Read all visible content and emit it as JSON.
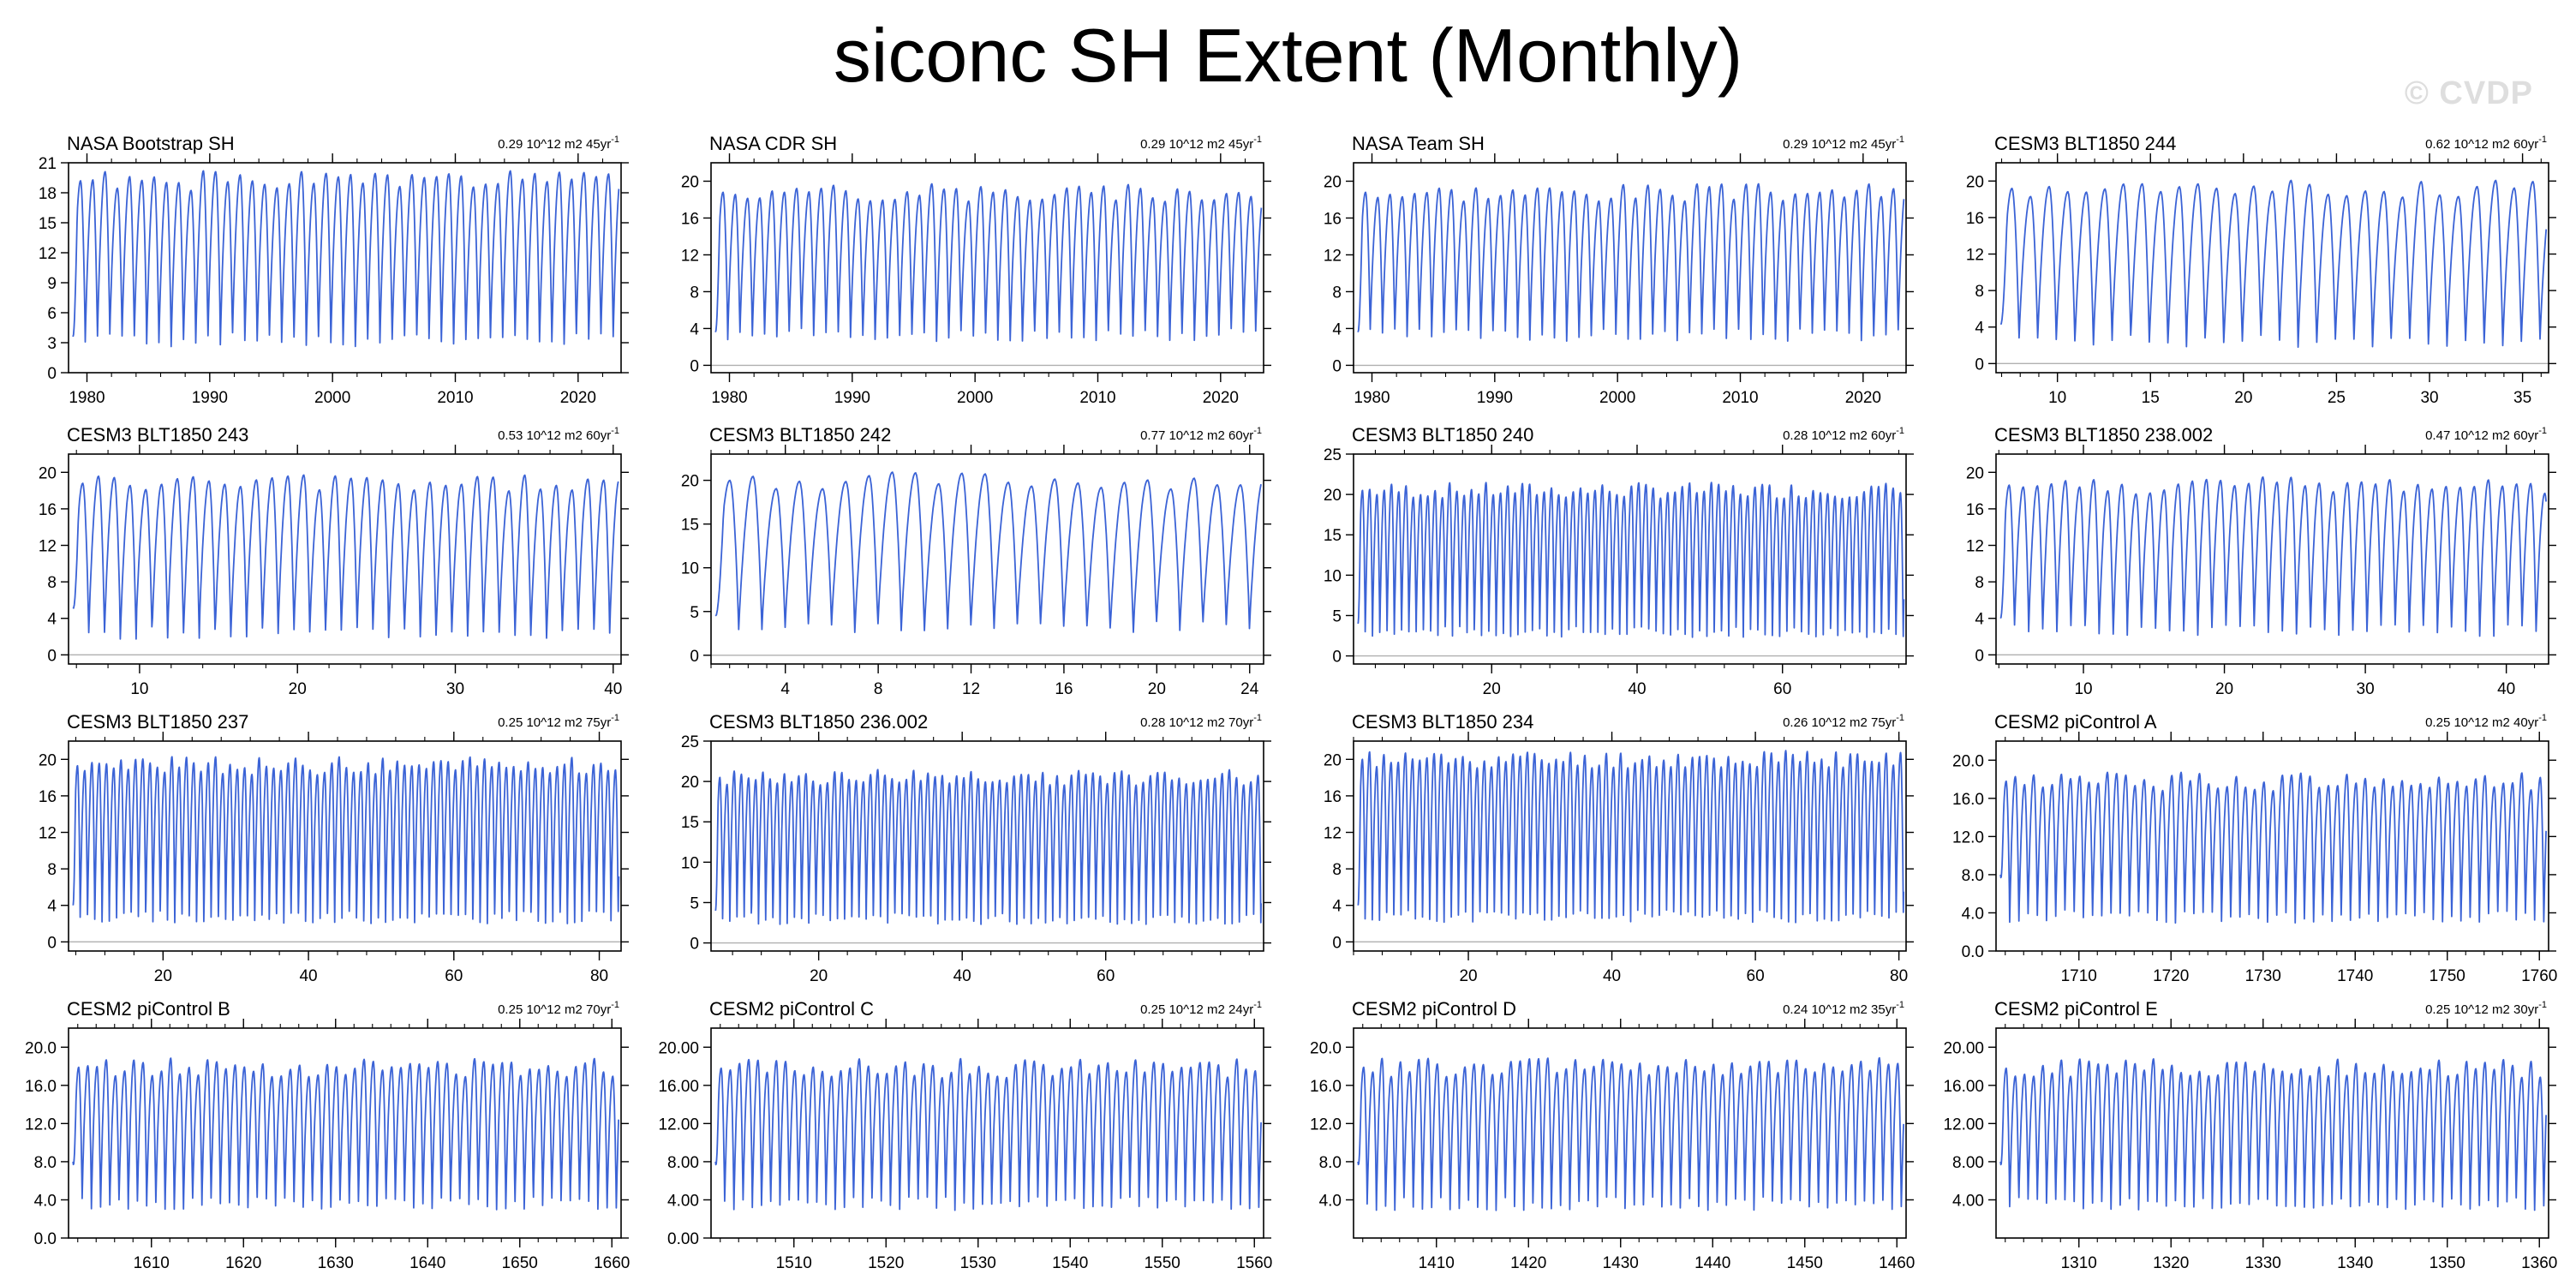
{
  "title": "siconc SH Extent (Monthly)",
  "watermark": "© CVDP",
  "colors": {
    "series": "#3b63d6",
    "zero_line": "#b0b0b0",
    "axis": "#000000"
  },
  "chart_data": [
    {
      "type": "line",
      "title": "NASA Bootstrap SH",
      "trend": "0.29 10^12 m2 45yr",
      "trend_sup": "-1",
      "xlim": [
        1978.5,
        2023.5
      ],
      "ylim": [
        0,
        21
      ],
      "xticks": [
        1980,
        1990,
        2000,
        2010,
        2020
      ],
      "yticks": [
        0,
        3,
        6,
        9,
        12,
        15,
        18,
        21
      ],
      "ytick_decimals": 0,
      "cycle_min": 3.3,
      "cycle_max": 19.2,
      "seed": 1,
      "partial_start": 3.6
    },
    {
      "type": "line",
      "title": "NASA CDR SH",
      "trend": "0.29 10^12 m2 45yr",
      "trend_sup": "-1",
      "xlim": [
        1978.5,
        2023.5
      ],
      "ylim": [
        -0.8,
        22
      ],
      "xticks": [
        1980,
        1990,
        2000,
        2010,
        2020
      ],
      "yticks": [
        0,
        4,
        8,
        12,
        16,
        20
      ],
      "ytick_decimals": 0,
      "cycle_min": 3.3,
      "cycle_max": 18.8,
      "seed": 2,
      "partial_start": 3.6
    },
    {
      "type": "line",
      "title": "NASA Team SH",
      "trend": "0.29 10^12 m2 45yr",
      "trend_sup": "-1",
      "xlim": [
        1978.5,
        2023.5
      ],
      "ylim": [
        -0.8,
        22
      ],
      "xticks": [
        1980,
        1990,
        2000,
        2010,
        2020
      ],
      "yticks": [
        0,
        4,
        8,
        12,
        16,
        20
      ],
      "ytick_decimals": 0,
      "cycle_min": 3.3,
      "cycle_max": 18.8,
      "seed": 3,
      "partial_start": 3.6
    },
    {
      "type": "line",
      "title": "CESM3 BLT1850 244",
      "trend": "0.62 10^12 m2 60yr",
      "trend_sup": "-1",
      "xlim": [
        6.7,
        36.4
      ],
      "ylim": [
        -1,
        22
      ],
      "xticks": [
        10,
        15,
        20,
        25,
        30,
        35
      ],
      "yticks": [
        0,
        4,
        8,
        12,
        16,
        20
      ],
      "ytick_decimals": 0,
      "cycle_min": 2.5,
      "cycle_max": 19.2,
      "seed": 4,
      "partial_start": 4.3
    },
    {
      "type": "line",
      "title": "CESM3 BLT1850 243",
      "trend": "0.53 10^12 m2 60yr",
      "trend_sup": "-1",
      "xlim": [
        5.5,
        40.5
      ],
      "ylim": [
        -1,
        22
      ],
      "xticks": [
        10,
        20,
        30,
        40
      ],
      "yticks": [
        0,
        4,
        8,
        12,
        16,
        20
      ],
      "ytick_decimals": 0,
      "cycle_min": 2.4,
      "cycle_max": 18.8,
      "seed": 5,
      "partial_start": 5.2
    },
    {
      "type": "line",
      "title": "CESM3 BLT1850 242",
      "trend": "0.77 10^12 m2 60yr",
      "trend_sup": "-1",
      "xlim": [
        0.8,
        24.6
      ],
      "ylim": [
        -1,
        23
      ],
      "xticks": [
        4,
        8,
        12,
        16,
        20,
        24
      ],
      "yticks": [
        0,
        5,
        10,
        15,
        20
      ],
      "ytick_decimals": 0,
      "cycle_min": 3.2,
      "cycle_max": 20.0,
      "seed": 6,
      "partial_start": 4.5
    },
    {
      "type": "line",
      "title": "CESM3 BLT1850 240",
      "trend": "0.28 10^12 m2 60yr",
      "trend_sup": "-1",
      "xlim": [
        1,
        77
      ],
      "ylim": [
        -1,
        25
      ],
      "xticks": [
        20,
        40,
        60
      ],
      "yticks": [
        0,
        5,
        10,
        15,
        20,
        25
      ],
      "ytick_decimals": 0,
      "cycle_min": 3.0,
      "cycle_max": 20.5,
      "seed": 7,
      "partial_start": 4.0
    },
    {
      "type": "line",
      "title": "CESM3 BLT1850 238.002",
      "trend": "0.47 10^12 m2 60yr",
      "trend_sup": "-1",
      "xlim": [
        3.8,
        43
      ],
      "ylim": [
        -1,
        22
      ],
      "xticks": [
        10,
        20,
        30,
        40
      ],
      "yticks": [
        0,
        4,
        8,
        12,
        16,
        20
      ],
      "ytick_decimals": 0,
      "cycle_min": 2.7,
      "cycle_max": 18.6,
      "seed": 8,
      "partial_start": 4.0
    },
    {
      "type": "line",
      "title": "CESM3 BLT1850 237",
      "trend": "0.25 10^12 m2 75yr",
      "trend_sup": "-1",
      "xlim": [
        7,
        83
      ],
      "ylim": [
        -1,
        22
      ],
      "xticks": [
        20,
        40,
        60,
        80
      ],
      "yticks": [
        0,
        4,
        8,
        12,
        16,
        20
      ],
      "ytick_decimals": 0,
      "cycle_min": 2.7,
      "cycle_max": 19.3,
      "seed": 9,
      "partial_start": 4.0
    },
    {
      "type": "line",
      "title": "CESM3 BLT1850 236.002",
      "trend": "0.28 10^12 m2 70yr",
      "trend_sup": "-1",
      "xlim": [
        5,
        82
      ],
      "ylim": [
        -1,
        25
      ],
      "xticks": [
        20,
        40,
        60
      ],
      "yticks": [
        0,
        5,
        10,
        15,
        20,
        25
      ],
      "ytick_decimals": 0,
      "cycle_min": 3.0,
      "cycle_max": 20.5,
      "seed": 10,
      "partial_start": 4.0
    },
    {
      "type": "line",
      "title": "CESM3 BLT1850 234",
      "trend": "0.26 10^12 m2 75yr",
      "trend_sup": "-1",
      "xlim": [
        4,
        81
      ],
      "ylim": [
        -1,
        22
      ],
      "xticks": [
        20,
        40,
        60,
        80
      ],
      "yticks": [
        0,
        4,
        8,
        12,
        16,
        20
      ],
      "ytick_decimals": 0,
      "cycle_min": 2.8,
      "cycle_max": 20.0,
      "seed": 11,
      "partial_start": 4.0
    },
    {
      "type": "line",
      "title": "CESM2 piControl A",
      "trend": "0.25 10^12 m2 40yr",
      "trend_sup": "-1",
      "xlim": [
        1701,
        1761
      ],
      "ylim": [
        0,
        22
      ],
      "xticks": [
        1710,
        1720,
        1730,
        1740,
        1750,
        1760
      ],
      "yticks": [
        0,
        4,
        8,
        12,
        16,
        20
      ],
      "ytick_decimals": 1,
      "cycle_min": 3.6,
      "cycle_max": 17.8,
      "seed": 12,
      "partial_start": 8.0
    },
    {
      "type": "line",
      "title": "CESM2 piControl B",
      "trend": "0.25 10^12 m2 70yr",
      "trend_sup": "-1",
      "xlim": [
        1601,
        1661
      ],
      "ylim": [
        0,
        22
      ],
      "xticks": [
        1610,
        1620,
        1630,
        1640,
        1650,
        1660
      ],
      "yticks": [
        0,
        4,
        8,
        12,
        16,
        20
      ],
      "ytick_decimals": 1,
      "cycle_min": 3.6,
      "cycle_max": 17.9,
      "seed": 13,
      "partial_start": 8.0
    },
    {
      "type": "line",
      "title": "CESM2 piControl C",
      "trend": "0.25 10^12 m2 24yr",
      "trend_sup": "-1",
      "xlim": [
        1501,
        1561
      ],
      "ylim": [
        0,
        22
      ],
      "xticks": [
        1510,
        1520,
        1530,
        1540,
        1550,
        1560
      ],
      "yticks": [
        0,
        4,
        8,
        12,
        16,
        20
      ],
      "ytick_decimals": 2,
      "cycle_min": 3.6,
      "cycle_max": 17.8,
      "seed": 14,
      "partial_start": 8.0
    },
    {
      "type": "line",
      "title": "CESM2 piControl D",
      "trend": "0.24 10^12 m2 35yr",
      "trend_sup": "-1",
      "xlim": [
        1401,
        1461
      ],
      "ylim": [
        0,
        22
      ],
      "xticks": [
        1410,
        1420,
        1430,
        1440,
        1450,
        1460
      ],
      "yticks": [
        4,
        8,
        12,
        16,
        20
      ],
      "ytick_decimals": 1,
      "cycle_min": 3.6,
      "cycle_max": 17.9,
      "seed": 15,
      "partial_start": 8.0
    },
    {
      "type": "line",
      "title": "CESM2 piControl E",
      "trend": "0.25 10^12 m2 30yr",
      "trend_sup": "-1",
      "xlim": [
        1301,
        1361
      ],
      "ylim": [
        0,
        22
      ],
      "xticks": [
        1310,
        1320,
        1330,
        1340,
        1350,
        1360
      ],
      "yticks": [
        4,
        8,
        12,
        16,
        20
      ],
      "ytick_decimals": 2,
      "cycle_min": 3.6,
      "cycle_max": 17.8,
      "seed": 16,
      "partial_start": 8.0
    }
  ]
}
